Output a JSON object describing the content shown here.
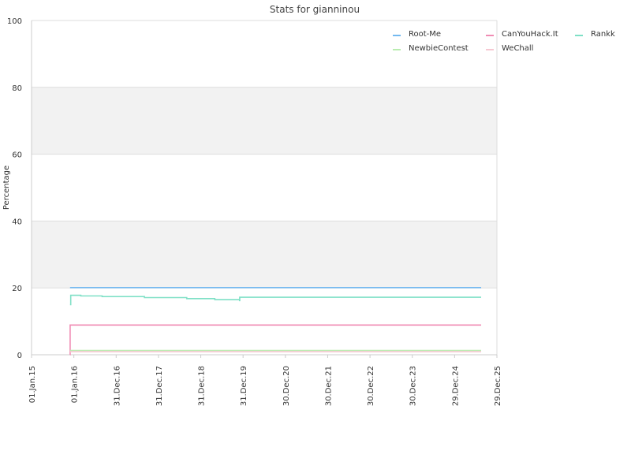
{
  "chart_data": {
    "type": "line",
    "title": "Stats for gianninou",
    "xlabel": "",
    "ylabel": "Percentage",
    "ylim": [
      0,
      100
    ],
    "y_ticks": [
      "0",
      "20",
      "40",
      "60",
      "80",
      "100"
    ],
    "x_ticks": [
      "01.Jan.15",
      "01.Jan.16",
      "31.Dec.16",
      "31.Dec.17",
      "31.Dec.18",
      "31.Dec.19",
      "30.Dec.20",
      "30.Dec.21",
      "30.Dec.22",
      "30.Dec.23",
      "29.Dec.24",
      "29.Dec.25"
    ],
    "xlim": [
      "01.Jan.15",
      "29.Dec.25"
    ],
    "grid": "horizontal bands",
    "band_color": "#f2f2f2",
    "legend_position": "top-right",
    "series": [
      {
        "name": "Root-Me",
        "color": "#74b9f0",
        "x": [
          "2015-11-29",
          "2025-08-15"
        ],
        "y": [
          20.1,
          20.1
        ]
      },
      {
        "name": "CanYouHack.It",
        "color": "#f08cb4",
        "x": [
          "2015-11-29",
          "2015-11-30",
          "2025-08-15"
        ],
        "y": [
          0,
          8.9,
          8.9
        ]
      },
      {
        "name": "Rankk",
        "color": "#7fe0c6",
        "x": [
          "2015-11-29",
          "2015-12-05",
          "2016-03-01",
          "2016-09-01",
          "2017-09-01",
          "2018-09-01",
          "2019-05-01",
          "2019-12-01",
          "2019-12-02",
          "2025-08-15"
        ],
        "y": [
          15.0,
          17.8,
          17.6,
          17.4,
          17.1,
          16.8,
          16.5,
          16.2,
          17.2,
          17.2
        ]
      },
      {
        "name": "NewbieContest",
        "color": "#b9ecb0",
        "x": [
          "2015-11-29",
          "2025-08-15"
        ],
        "y": [
          1.3,
          1.3
        ]
      },
      {
        "name": "WeChall",
        "color": "#f6c8d2",
        "x": [
          "2015-11-29",
          "2025-08-15"
        ],
        "y": [
          0.9,
          0.9
        ]
      }
    ]
  }
}
